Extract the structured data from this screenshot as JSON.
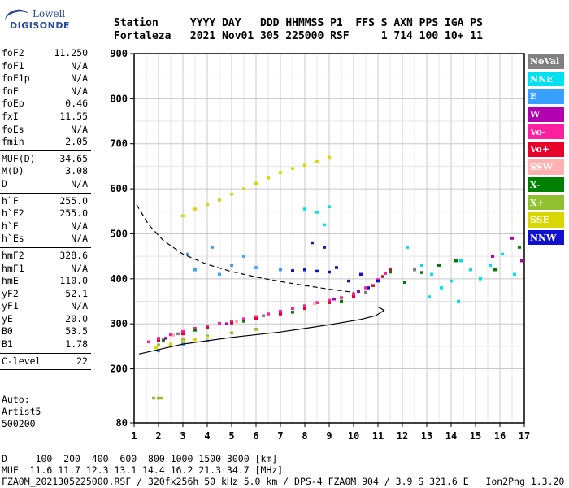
{
  "logo": {
    "line1": "Lowell",
    "line2": "DIGISONDE"
  },
  "header": {
    "labels": [
      "Station",
      "YYYY DAY",
      "DDD",
      "HHMMSS",
      "P1",
      "FFS",
      "S",
      "AXN",
      "PPS",
      "IGA",
      "PS"
    ],
    "values": [
      "Fortaleza",
      "2021 Nov01",
      "305",
      "225000",
      "RSF",
      "",
      "1",
      "714",
      "100",
      "10+",
      "11"
    ]
  },
  "params": [
    [
      {
        "label": "foF2",
        "value": "11.250"
      },
      {
        "label": "foF1",
        "value": "N/A"
      },
      {
        "label": "foF1p",
        "value": "N/A"
      },
      {
        "label": "foE",
        "value": "N/A"
      },
      {
        "label": "foEp",
        "value": "0.46"
      },
      {
        "label": "fxI",
        "value": "11.55"
      },
      {
        "label": "foEs",
        "value": "N/A"
      },
      {
        "label": "fmin",
        "value": "2.05"
      }
    ],
    [
      {
        "label": "MUF(D)",
        "value": "34.65"
      },
      {
        "label": "M(D)",
        "value": "3.08"
      },
      {
        "label": "D",
        "value": "N/A"
      }
    ],
    [
      {
        "label": "h`F",
        "value": "255.0"
      },
      {
        "label": "h`F2",
        "value": "255.0"
      },
      {
        "label": "h`E",
        "value": "N/A"
      },
      {
        "label": "h`Es",
        "value": "N/A"
      }
    ],
    [
      {
        "label": "hmF2",
        "value": "328.6"
      },
      {
        "label": "hmF1",
        "value": "N/A"
      },
      {
        "label": "hmE",
        "value": "110.0"
      },
      {
        "label": "yF2",
        "value": "52.1"
      },
      {
        "label": "yF1",
        "value": "N/A"
      },
      {
        "label": "yE",
        "value": "20.0"
      },
      {
        "label": "B0",
        "value": "53.5"
      },
      {
        "label": "B1",
        "value": "1.78"
      }
    ],
    [
      {
        "label": "C-level",
        "value": "22"
      }
    ]
  ],
  "auto": {
    "line1": "Auto:",
    "line2": "Artist5",
    "line3": "500200"
  },
  "legend": [
    {
      "label": "NoVal",
      "color": "#808080"
    },
    {
      "label": "NNE",
      "color": "#00e0f0"
    },
    {
      "label": "E",
      "color": "#3aa0ff"
    },
    {
      "label": "W",
      "color": "#b000b0"
    },
    {
      "label": "Vo-",
      "color": "#ff20a0"
    },
    {
      "label": "Vo+",
      "color": "#e8002a"
    },
    {
      "label": "SSW",
      "color": "#ffb0b0"
    },
    {
      "label": "X-",
      "color": "#008000"
    },
    {
      "label": "X+",
      "color": "#90c030"
    },
    {
      "label": "SSE",
      "color": "#d8d800"
    },
    {
      "label": "NNW",
      "color": "#1010d0"
    }
  ],
  "footer": {
    "d_row": "D     100  200  400  600  800 1000 1500 3000 [km]",
    "muf_row": "MUF  11.6 11.7 12.3 13.1 14.4 16.2 21.3 34.7 [MHz]",
    "file_row": "FZA0M_2021305225000.RSF / 320fx256h 50 kHz 5.0 km / DPS-4 FZA0M 904 / 3.9 S 321.6 E   Ion2Png 1.3.20"
  },
  "chart_data": {
    "type": "scatter",
    "xlim": [
      1,
      17
    ],
    "ylim": [
      80,
      900
    ],
    "xticks": [
      1,
      2,
      3,
      4,
      5,
      6,
      7,
      8,
      9,
      10,
      11,
      12,
      13,
      14,
      15,
      16,
      17
    ],
    "yticks": [
      80,
      200,
      300,
      400,
      500,
      600,
      700,
      800,
      900
    ],
    "grid": true,
    "legend_position": "right",
    "series": [
      {
        "name": "Vo-",
        "color": "#ff20a0",
        "points": [
          [
            1.6,
            260
          ],
          [
            2.0,
            268
          ],
          [
            2.5,
            276
          ],
          [
            3.0,
            283
          ],
          [
            3.5,
            290
          ],
          [
            4.0,
            295
          ],
          [
            4.5,
            301
          ],
          [
            5.0,
            306
          ],
          [
            5.5,
            311
          ],
          [
            6.0,
            316
          ],
          [
            6.5,
            322
          ],
          [
            7.0,
            328
          ],
          [
            7.5,
            334
          ],
          [
            8.0,
            340
          ],
          [
            8.5,
            347
          ],
          [
            9.0,
            352
          ],
          [
            9.5,
            358
          ],
          [
            10.0,
            366
          ],
          [
            10.5,
            380
          ],
          [
            11.0,
            398
          ],
          [
            11.3,
            412
          ]
        ]
      },
      {
        "name": "Vo+",
        "color": "#e8002a",
        "points": [
          [
            2.0,
            262
          ],
          [
            3.0,
            278
          ],
          [
            4.0,
            291
          ],
          [
            5.0,
            302
          ],
          [
            6.0,
            311
          ],
          [
            7.0,
            322
          ],
          [
            8.0,
            334
          ],
          [
            9.0,
            347
          ],
          [
            10.0,
            360
          ],
          [
            10.8,
            385
          ],
          [
            11.2,
            405
          ],
          [
            11.5,
            420
          ]
        ]
      },
      {
        "name": "X-",
        "color": "#008000",
        "points": [
          [
            2.2,
            264
          ],
          [
            3.5,
            286
          ],
          [
            5.5,
            306
          ],
          [
            7.5,
            326
          ],
          [
            9.5,
            350
          ],
          [
            11.5,
            415
          ],
          [
            12.1,
            392
          ],
          [
            12.8,
            414
          ],
          [
            13.5,
            430
          ],
          [
            14.2,
            440
          ],
          [
            15.8,
            420
          ],
          [
            16.8,
            470
          ]
        ]
      },
      {
        "name": "X+",
        "color": "#90c030",
        "points": [
          [
            2.0,
            253
          ],
          [
            3.0,
            265
          ],
          [
            4.0,
            273
          ],
          [
            5.0,
            280
          ],
          [
            6.0,
            288
          ],
          [
            1.8,
            135
          ],
          [
            2.0,
            135
          ],
          [
            2.1,
            135
          ]
        ]
      },
      {
        "name": "SSE",
        "color": "#d8d800",
        "points": [
          [
            1.9,
            247
          ],
          [
            2.5,
            255
          ],
          [
            3.0,
            260
          ],
          [
            3.5,
            265
          ],
          [
            4.0,
            270
          ],
          [
            3.0,
            540
          ],
          [
            3.5,
            555
          ],
          [
            4.0,
            565
          ],
          [
            4.5,
            575
          ],
          [
            5.0,
            588
          ],
          [
            5.5,
            600
          ],
          [
            6.0,
            612
          ],
          [
            6.5,
            624
          ],
          [
            7.0,
            636
          ],
          [
            7.5,
            645
          ],
          [
            8.0,
            652
          ],
          [
            8.5,
            660
          ],
          [
            9.0,
            670
          ]
        ]
      },
      {
        "name": "E",
        "color": "#3aa0ff",
        "points": [
          [
            2.0,
            240
          ],
          [
            3.0,
            255
          ],
          [
            4.0,
            262
          ],
          [
            3.5,
            420
          ],
          [
            4.5,
            410
          ],
          [
            5.0,
            430
          ],
          [
            6.0,
            425
          ],
          [
            7.0,
            420
          ],
          [
            3.2,
            455
          ],
          [
            4.2,
            470
          ],
          [
            5.5,
            450
          ]
        ]
      },
      {
        "name": "NNE",
        "color": "#00e0f0",
        "points": [
          [
            8.0,
            555
          ],
          [
            8.5,
            548
          ],
          [
            9.0,
            560
          ],
          [
            8.8,
            520
          ],
          [
            12.2,
            470
          ],
          [
            12.8,
            430
          ],
          [
            13.2,
            410
          ],
          [
            13.6,
            380
          ],
          [
            14.0,
            395
          ],
          [
            14.4,
            440
          ],
          [
            14.8,
            420
          ],
          [
            15.2,
            400
          ],
          [
            15.6,
            430
          ],
          [
            16.1,
            455
          ],
          [
            16.6,
            410
          ],
          [
            13.1,
            360
          ],
          [
            14.3,
            350
          ]
        ]
      },
      {
        "name": "NNW",
        "color": "#1010d0",
        "points": [
          [
            7.5,
            418
          ],
          [
            8.0,
            420
          ],
          [
            8.5,
            417
          ],
          [
            9.0,
            415
          ],
          [
            9.3,
            425
          ],
          [
            8.3,
            480
          ],
          [
            8.8,
            470
          ],
          [
            9.8,
            395
          ],
          [
            10.3,
            410
          ],
          [
            10.6,
            380
          ],
          [
            11.0,
            395
          ]
        ]
      },
      {
        "name": "W",
        "color": "#b000b0",
        "points": [
          [
            2.3,
            268
          ],
          [
            4.8,
            300
          ],
          [
            9.2,
            355
          ],
          [
            10.2,
            372
          ],
          [
            15.7,
            450
          ],
          [
            16.5,
            490
          ],
          [
            16.9,
            440
          ]
        ]
      },
      {
        "name": "SSW",
        "color": "#ffb0b0",
        "points": [
          [
            2.6,
            275
          ],
          [
            5.2,
            305
          ],
          [
            8.4,
            345
          ]
        ]
      },
      {
        "name": "NoVal",
        "color": "#808080",
        "points": [
          [
            2.8,
            278
          ],
          [
            6.3,
            318
          ],
          [
            10.5,
            370
          ],
          [
            12.5,
            420
          ]
        ]
      }
    ],
    "lines": [
      {
        "name": "profile",
        "style": "solid",
        "x": [
          1.2,
          3.0,
          5.0,
          7.0,
          9.0,
          10.3,
          10.9,
          11.25,
          11.0
        ],
        "y": [
          233,
          255,
          270,
          282,
          298,
          310,
          318,
          330,
          338
        ]
      },
      {
        "name": "profile-top",
        "style": "dashed",
        "x": [
          1.1,
          1.6,
          2.2,
          3.0,
          4.0,
          5.0,
          6.0,
          7.0,
          8.0,
          9.0,
          10.0
        ],
        "y": [
          565,
          520,
          485,
          455,
          432,
          416,
          404,
          394,
          385,
          377,
          370
        ]
      }
    ]
  }
}
